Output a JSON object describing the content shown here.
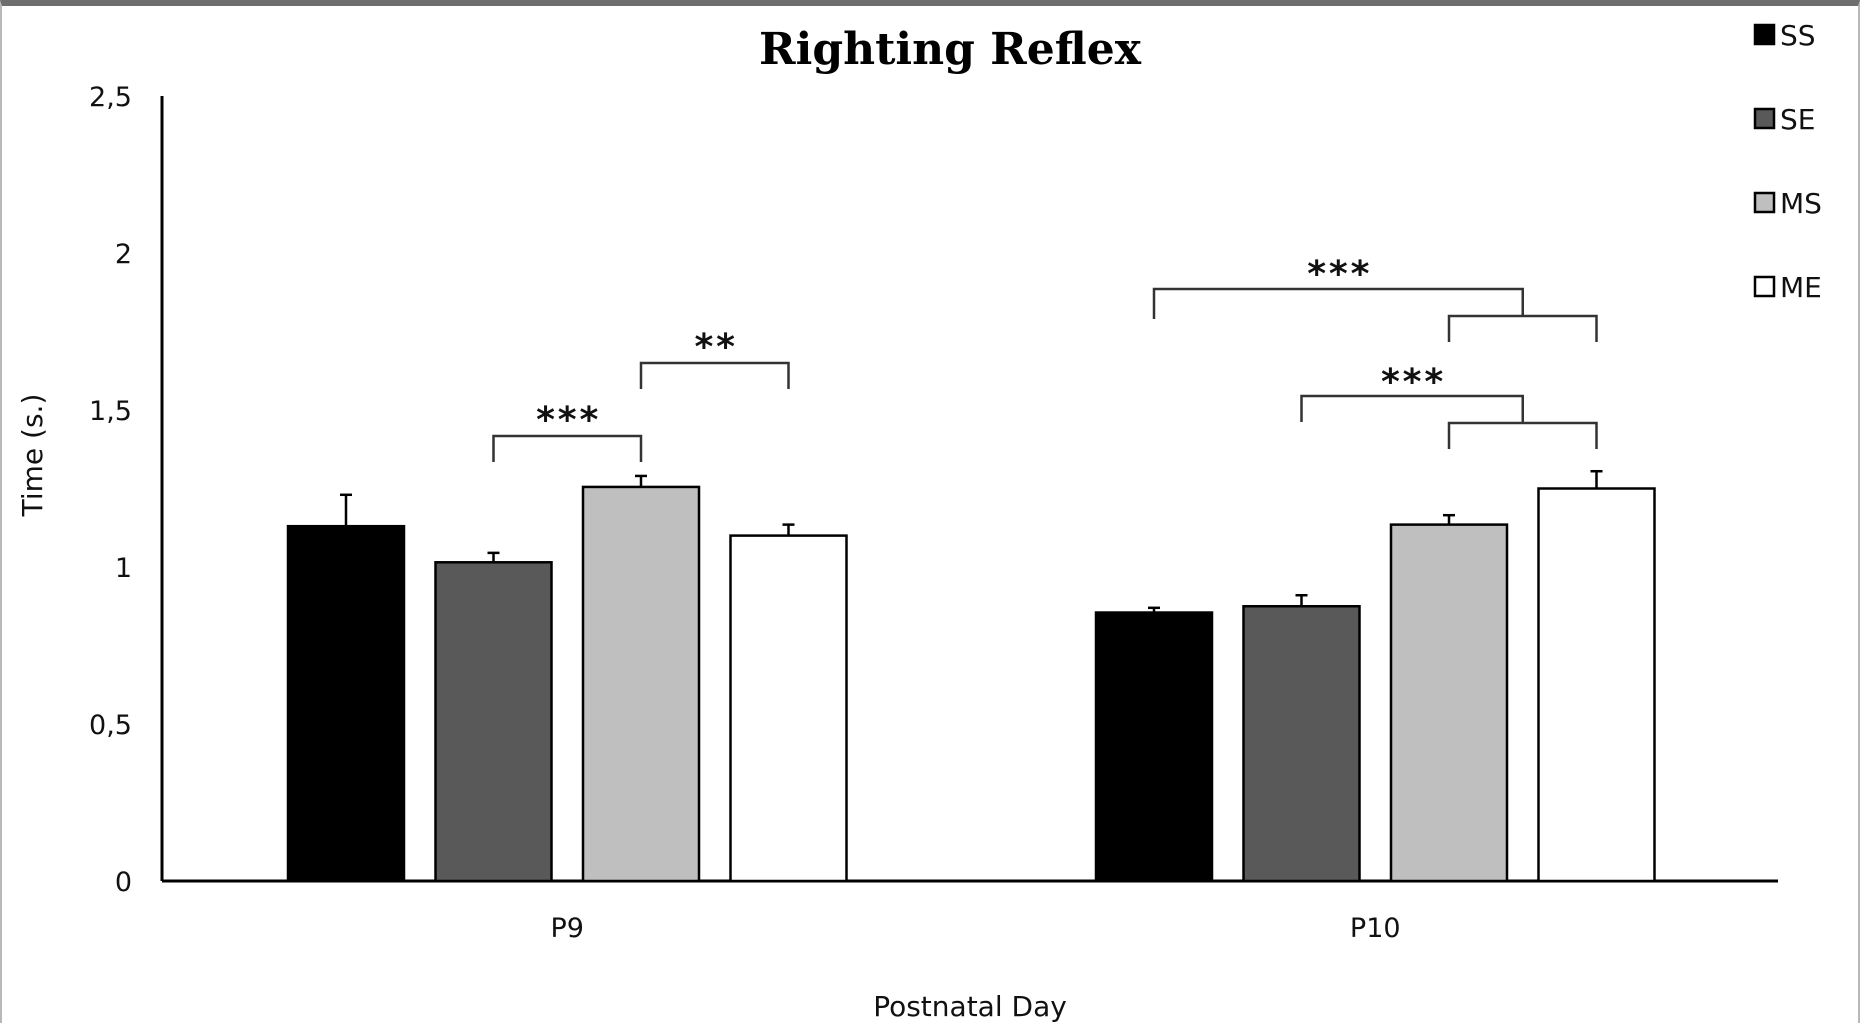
{
  "chart_data": {
    "type": "bar",
    "title": "Righting Reflex",
    "xlabel": "Postnatal Day",
    "ylabel": "Time (s.)",
    "ylim": [
      0,
      2.5
    ],
    "yticks": [
      "0",
      "0,5",
      "1",
      "1,5",
      "2",
      "2,5"
    ],
    "categories": [
      "P9",
      "P10"
    ],
    "series": [
      {
        "name": "SS",
        "color": "#000000",
        "values": [
          1.13,
          0.855
        ],
        "errors": [
          0.1,
          0.015
        ]
      },
      {
        "name": "SE",
        "color": "#595959",
        "values": [
          1.015,
          0.875
        ],
        "errors": [
          0.03,
          0.035
        ]
      },
      {
        "name": "MS",
        "color": "#bfbfbf",
        "values": [
          1.255,
          1.135
        ],
        "errors": [
          0.035,
          0.03
        ]
      },
      {
        "name": "ME",
        "color": "#ffffff",
        "values": [
          1.1,
          1.25
        ],
        "errors": [
          0.035,
          0.055
        ]
      }
    ],
    "legend_position": "top-right",
    "grid": false,
    "significance": [
      {
        "category": "P9",
        "label": "***",
        "from_series": "SE",
        "to_series": "MS"
      },
      {
        "category": "P9",
        "label": "**",
        "from_series": "MS",
        "to_series": "ME"
      },
      {
        "category": "P10",
        "label": "***",
        "from_series": "SS",
        "to_group": [
          "MS",
          "ME"
        ]
      },
      {
        "category": "P10",
        "label": "***",
        "from_series": "SE",
        "to_group": [
          "MS",
          "ME"
        ]
      }
    ]
  }
}
